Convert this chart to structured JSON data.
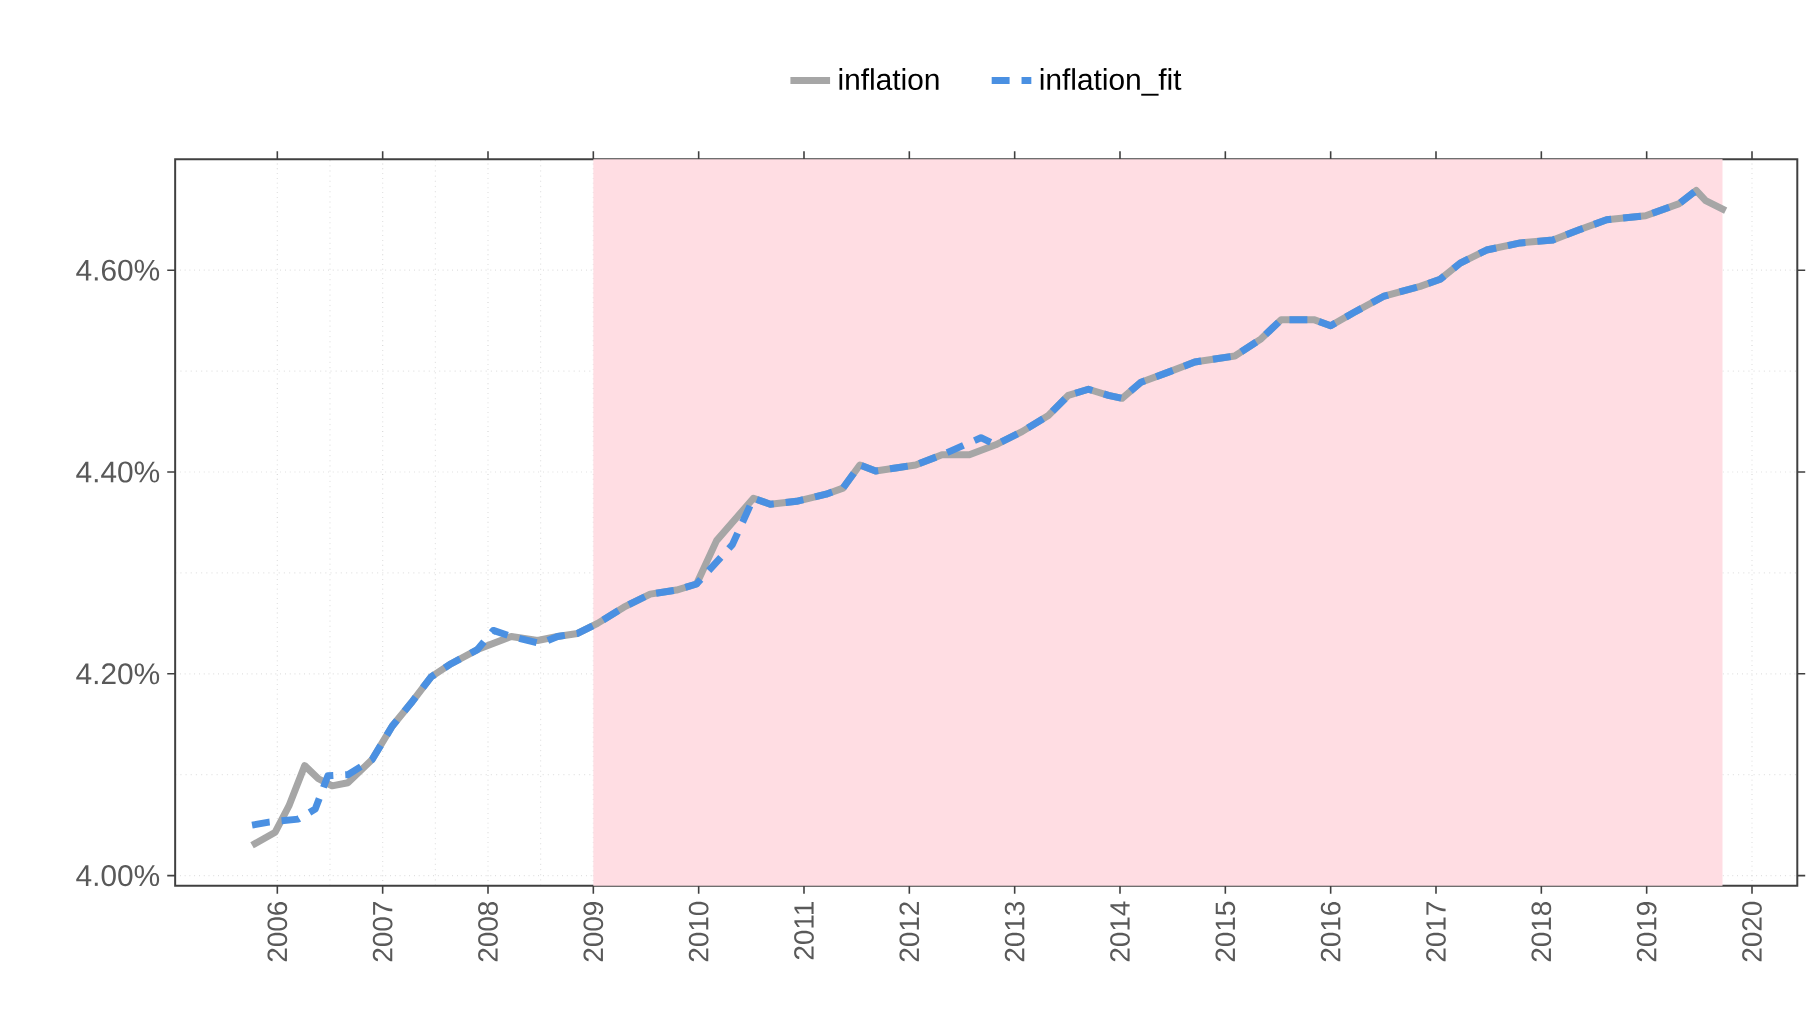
{
  "chart_data": {
    "type": "line",
    "xlim": [
      2005.03,
      2020.43
    ],
    "ylim": [
      3.99,
      4.71
    ],
    "xticks": [
      2006,
      2007,
      2008,
      2009,
      2010,
      2011,
      2012,
      2013,
      2014,
      2015,
      2016,
      2017,
      2018,
      2019,
      2020
    ],
    "yticks": [
      {
        "value": 4.0,
        "label": "4.00%"
      },
      {
        "value": 4.2,
        "label": "4.20%"
      },
      {
        "value": 4.4,
        "label": "4.40%"
      },
      {
        "value": 4.6,
        "label": "4.60%"
      }
    ],
    "grid": true,
    "legend": "top",
    "bands": [
      {
        "axis": "x",
        "from": 2009,
        "to": 2019.72,
        "color": "#ffdde3"
      }
    ],
    "series": [
      {
        "name": "inflation",
        "color": "#a6a6a6",
        "line_style": "solid",
        "x": [
          2005.76,
          2005.98,
          2006.11,
          2006.26,
          2006.39,
          2006.52,
          2006.67,
          2006.9,
          2007.09,
          2007.27,
          2007.46,
          2007.65,
          2007.9,
          2008.22,
          2008.47,
          2008.66,
          2008.85,
          2009.04,
          2009.29,
          2009.54,
          2009.79,
          2009.98,
          2010.17,
          2010.52,
          2010.68,
          2010.93,
          2011.21,
          2011.37,
          2011.53,
          2011.68,
          2011.87,
          2012.06,
          2012.31,
          2012.57,
          2012.82,
          2013.07,
          2013.32,
          2013.51,
          2013.7,
          2013.89,
          2014.02,
          2014.2,
          2014.46,
          2014.71,
          2015.09,
          2015.34,
          2015.53,
          2015.84,
          2016.0,
          2016.22,
          2016.5,
          2016.85,
          2017.04,
          2017.23,
          2017.48,
          2017.8,
          2018.11,
          2018.36,
          2018.62,
          2018.99,
          2019.31,
          2019.47,
          2019.56,
          2019.75
        ],
        "values": [
          4.03,
          4.043,
          4.069,
          4.109,
          4.096,
          4.089,
          4.092,
          4.115,
          4.148,
          4.171,
          4.197,
          4.21,
          4.224,
          4.237,
          4.233,
          4.237,
          4.24,
          4.25,
          4.266,
          4.279,
          4.283,
          4.289,
          4.332,
          4.374,
          4.368,
          4.371,
          4.378,
          4.384,
          4.407,
          4.401,
          4.404,
          4.407,
          4.417,
          4.417,
          4.427,
          4.44,
          4.456,
          4.476,
          4.482,
          4.476,
          4.473,
          4.489,
          4.499,
          4.509,
          4.515,
          4.532,
          4.551,
          4.551,
          4.545,
          4.558,
          4.574,
          4.584,
          4.591,
          4.607,
          4.62,
          4.627,
          4.63,
          4.64,
          4.65,
          4.654,
          4.666,
          4.679,
          4.669,
          4.659
        ]
      },
      {
        "name": "inflation_fit",
        "color": "#4a90e2",
        "line_style": "dashed",
        "x": [
          2005.76,
          2005.92,
          2006.2,
          2006.36,
          2006.48,
          2006.67,
          2006.9,
          2007.09,
          2007.27,
          2007.46,
          2007.65,
          2007.9,
          2008.05,
          2008.22,
          2008.5,
          2008.66,
          2008.85,
          2009.04,
          2009.29,
          2009.54,
          2009.79,
          2009.98,
          2010.32,
          2010.52,
          2010.68,
          2010.93,
          2011.21,
          2011.37,
          2011.53,
          2011.68,
          2011.87,
          2012.06,
          2012.31,
          2012.68,
          2012.82,
          2013.07,
          2013.32,
          2013.51,
          2013.7,
          2013.89,
          2014.02,
          2014.2,
          2014.46,
          2014.71,
          2015.09,
          2015.34,
          2015.53,
          2015.84,
          2016.0,
          2016.22,
          2016.5,
          2016.85,
          2017.04,
          2017.23,
          2017.48,
          2017.8,
          2018.11,
          2018.36,
          2018.62,
          2018.99,
          2019.31,
          2019.47
        ],
        "values": [
          4.05,
          4.053,
          4.056,
          4.066,
          4.099,
          4.1,
          4.115,
          4.148,
          4.171,
          4.197,
          4.21,
          4.224,
          4.243,
          4.237,
          4.23,
          4.237,
          4.24,
          4.25,
          4.266,
          4.279,
          4.283,
          4.289,
          4.328,
          4.374,
          4.368,
          4.371,
          4.378,
          4.384,
          4.407,
          4.401,
          4.404,
          4.407,
          4.417,
          4.434,
          4.427,
          4.44,
          4.456,
          4.476,
          4.482,
          4.476,
          4.473,
          4.489,
          4.499,
          4.509,
          4.515,
          4.532,
          4.551,
          4.551,
          4.545,
          4.558,
          4.574,
          4.584,
          4.591,
          4.607,
          4.62,
          4.627,
          4.63,
          4.64,
          4.65,
          4.654,
          4.666,
          4.679
        ]
      }
    ]
  }
}
